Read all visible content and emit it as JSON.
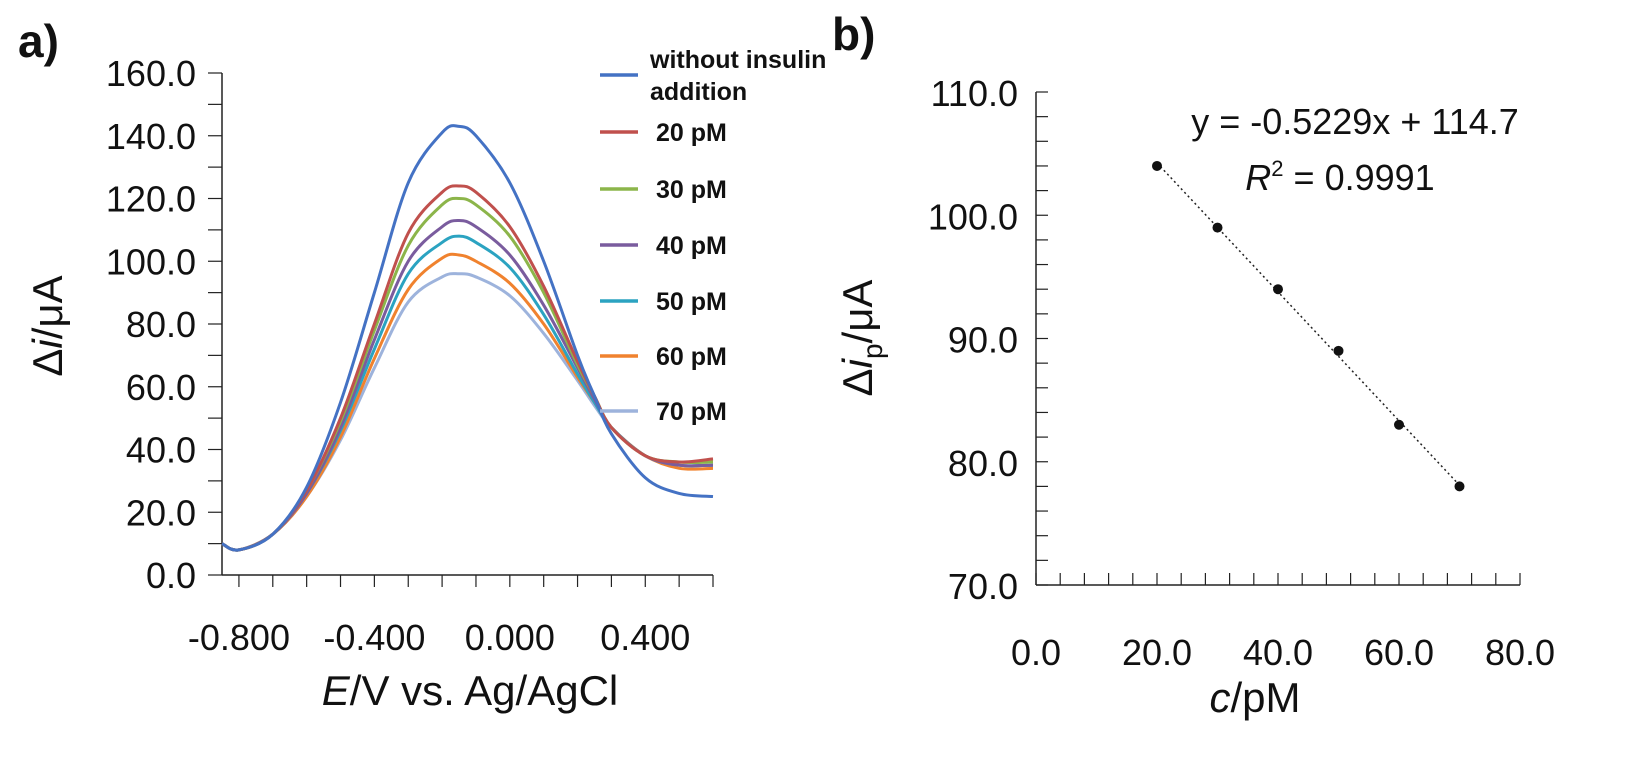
{
  "chart_data": [
    {
      "type": "line",
      "panel_label": "a)",
      "xlabel_italic": "E",
      "xlabel_rest": "/V vs. Ag/AgCl",
      "ylabel_prefix": "Δ",
      "ylabel_italic": "i",
      "ylabel_rest": "/μA",
      "xlim": [
        -0.85,
        0.6
      ],
      "ylim": [
        0,
        160
      ],
      "x_ticks": [
        "-0.800",
        "-0.400",
        "0.000",
        "0.400"
      ],
      "x_tick_values": [
        -0.8,
        -0.4,
        0.0,
        0.4
      ],
      "y_ticks": [
        "0.0",
        "20.0",
        "40.0",
        "60.0",
        "80.0",
        "100.0",
        "120.0",
        "140.0",
        "160.0"
      ],
      "y_tick_values": [
        0,
        20,
        40,
        60,
        80,
        100,
        120,
        140,
        160
      ],
      "legend_position": "top-right",
      "series": [
        {
          "name": "without insulin addition",
          "color": "#4472c4",
          "x": [
            -0.85,
            -0.8,
            -0.7,
            -0.6,
            -0.5,
            -0.4,
            -0.3,
            -0.2,
            -0.15,
            -0.1,
            0.0,
            0.1,
            0.2,
            0.25,
            0.3,
            0.4,
            0.5,
            0.6
          ],
          "y": [
            10,
            8,
            13,
            28,
            55,
            90,
            125,
            141,
            143,
            140,
            125,
            100,
            70,
            57,
            45,
            31,
            26,
            25
          ]
        },
        {
          "name": "20 pM",
          "color": "#c0504d",
          "x": [
            -0.85,
            -0.8,
            -0.7,
            -0.6,
            -0.5,
            -0.4,
            -0.3,
            -0.2,
            -0.15,
            -0.1,
            0.0,
            0.1,
            0.2,
            0.25,
            0.3,
            0.4,
            0.5,
            0.6
          ],
          "y": [
            10,
            8,
            13,
            27,
            50,
            80,
            109,
            122,
            124,
            122,
            111,
            92,
            68,
            57,
            47,
            38,
            36,
            37
          ]
        },
        {
          "name": "30 pM",
          "color": "#8cb54a",
          "x": [
            -0.85,
            -0.8,
            -0.7,
            -0.6,
            -0.5,
            -0.4,
            -0.3,
            -0.2,
            -0.15,
            -0.1,
            0.0,
            0.1,
            0.2,
            0.25,
            0.3,
            0.4,
            0.5,
            0.6
          ],
          "y": [
            10,
            8,
            13,
            27,
            49,
            78,
            105,
            118,
            120,
            118,
            108,
            90,
            67,
            57,
            47,
            38,
            36,
            36
          ]
        },
        {
          "name": "40 pM",
          "color": "#7a5c9e",
          "x": [
            -0.85,
            -0.8,
            -0.7,
            -0.6,
            -0.5,
            -0.4,
            -0.3,
            -0.2,
            -0.15,
            -0.1,
            0.0,
            0.1,
            0.2,
            0.25,
            0.3,
            0.4,
            0.5,
            0.6
          ],
          "y": [
            10,
            8,
            13,
            26,
            47,
            75,
            100,
            111,
            113,
            111,
            102,
            86,
            66,
            56,
            47,
            38,
            35,
            35
          ]
        },
        {
          "name": "50 pM",
          "color": "#2ba3c1",
          "x": [
            -0.85,
            -0.8,
            -0.7,
            -0.6,
            -0.5,
            -0.4,
            -0.3,
            -0.2,
            -0.15,
            -0.1,
            0.0,
            0.1,
            0.2,
            0.25,
            0.3,
            0.4,
            0.5,
            0.6
          ],
          "y": [
            10,
            8,
            13,
            26,
            46,
            72,
            96,
            106,
            108,
            106,
            98,
            83,
            64,
            55,
            47,
            38,
            35,
            35
          ]
        },
        {
          "name": "60 pM",
          "color": "#f0822e",
          "x": [
            -0.85,
            -0.8,
            -0.7,
            -0.6,
            -0.5,
            -0.4,
            -0.3,
            -0.2,
            -0.15,
            -0.1,
            0.0,
            0.1,
            0.2,
            0.25,
            0.3,
            0.4,
            0.5,
            0.6
          ],
          "y": [
            10,
            8,
            13,
            25,
            44,
            69,
            91,
            101,
            102,
            100,
            93,
            80,
            63,
            55,
            47,
            38,
            34,
            34
          ]
        },
        {
          "name": "70 pM",
          "color": "#9db3dc",
          "x": [
            -0.85,
            -0.8,
            -0.7,
            -0.6,
            -0.5,
            -0.4,
            -0.3,
            -0.2,
            -0.15,
            -0.1,
            0.0,
            0.1,
            0.2,
            0.25,
            0.3,
            0.4,
            0.5,
            0.6
          ],
          "y": [
            10,
            8,
            13,
            25,
            43,
            66,
            87,
            95,
            96,
            95,
            89,
            77,
            62,
            54,
            47,
            38,
            35,
            35
          ]
        }
      ]
    },
    {
      "type": "scatter",
      "panel_label": "b)",
      "xlabel_italic": "c",
      "xlabel_rest": "/pM",
      "ylabel_prefix": "Δ",
      "ylabel_italic": "i",
      "ylabel_sub": "p",
      "ylabel_rest": "/μA",
      "xlim": [
        0,
        80
      ],
      "ylim": [
        70,
        110
      ],
      "x_ticks": [
        "0.0",
        "20.0",
        "40.0",
        "60.0",
        "80.0"
      ],
      "x_tick_values": [
        0,
        20,
        40,
        60,
        80
      ],
      "y_ticks": [
        "70.0",
        "80.0",
        "90.0",
        "100.0",
        "110.0"
      ],
      "y_tick_values": [
        70,
        80,
        90,
        100,
        110
      ],
      "points": {
        "x": [
          20,
          30,
          40,
          50,
          60,
          70
        ],
        "y": [
          104,
          99,
          94,
          89,
          83,
          78
        ]
      },
      "trendline": {
        "slope": -0.5229,
        "intercept": 114.7,
        "style": "dotted",
        "x_range": [
          20,
          70
        ]
      },
      "equation_text": "y = -0.5229x + 114.7",
      "r2_label": "R",
      "r2_sup": "2",
      "r2_value_text": " = 0.9991"
    }
  ]
}
